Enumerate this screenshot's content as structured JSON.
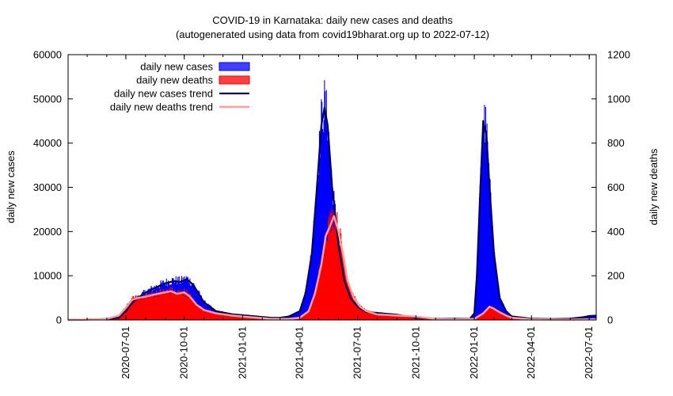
{
  "chart_data": {
    "type": "area",
    "title": "COVID-19 in Karnataka: daily new cases and deaths",
    "subtitle": "(autogenerated using data from covid19bharat.org up to 2022-07-12)",
    "ylabel": "daily new cases",
    "y2label": "daily new deaths",
    "ylim": [
      0,
      60000
    ],
    "y2lim": [
      0,
      1200
    ],
    "yticks": [
      "0",
      "10000",
      "20000",
      "30000",
      "40000",
      "50000",
      "60000"
    ],
    "y2ticks": [
      "0",
      "200",
      "400",
      "600",
      "800",
      "1000",
      "1200"
    ],
    "xlim": [
      "2020-04-01",
      "2022-07-12"
    ],
    "xticks": [
      "2020-07-01",
      "2020-10-01",
      "2021-01-01",
      "2021-04-01",
      "2021-07-01",
      "2021-10-01",
      "2022-01-01",
      "2022-04-01",
      "2022-07-01"
    ],
    "legend_position": "top-left",
    "legend": [
      {
        "label": "daily new cases",
        "color": "#0000ff",
        "kind": "box"
      },
      {
        "label": "daily new deaths",
        "color": "#ff0000",
        "kind": "box"
      },
      {
        "label": "daily new cases trend",
        "color": "#00005a",
        "kind": "line"
      },
      {
        "label": "daily new deaths trend",
        "color": "#ff9c9c",
        "kind": "line"
      }
    ],
    "series": [
      {
        "name": "daily new cases trend",
        "axis": "y",
        "dates": [
          "2020-04-01",
          "2020-05-01",
          "2020-06-01",
          "2020-06-20",
          "2020-07-01",
          "2020-07-15",
          "2020-08-01",
          "2020-08-15",
          "2020-09-01",
          "2020-09-15",
          "2020-09-25",
          "2020-10-05",
          "2020-10-15",
          "2020-11-01",
          "2020-11-20",
          "2020-12-15",
          "2021-01-15",
          "2021-02-15",
          "2021-03-01",
          "2021-03-15",
          "2021-04-01",
          "2021-04-10",
          "2021-04-20",
          "2021-04-28",
          "2021-05-05",
          "2021-05-10",
          "2021-05-15",
          "2021-05-22",
          "2021-06-01",
          "2021-06-10",
          "2021-06-20",
          "2021-07-01",
          "2021-07-15",
          "2021-08-01",
          "2021-09-01",
          "2021-10-01",
          "2021-11-01",
          "2021-12-01",
          "2021-12-25",
          "2022-01-01",
          "2022-01-05",
          "2022-01-10",
          "2022-01-15",
          "2022-01-20",
          "2022-01-25",
          "2022-02-01",
          "2022-02-10",
          "2022-02-20",
          "2022-03-01",
          "2022-04-01",
          "2022-05-01",
          "2022-06-01",
          "2022-06-20",
          "2022-07-01",
          "2022-07-12"
        ],
        "values": [
          0,
          100,
          200,
          500,
          2000,
          4500,
          6200,
          7200,
          8300,
          8800,
          8600,
          9200,
          8000,
          4000,
          2000,
          1300,
          900,
          500,
          500,
          800,
          2000,
          6000,
          15000,
          30000,
          44000,
          48000,
          44000,
          30000,
          17000,
          9000,
          5000,
          3000,
          1800,
          1600,
          1200,
          500,
          300,
          300,
          300,
          1500,
          10000,
          28000,
          45000,
          42000,
          30000,
          15000,
          5000,
          2000,
          800,
          300,
          200,
          300,
          600,
          900,
          1000
        ]
      },
      {
        "name": "daily new deaths trend",
        "axis": "y2",
        "dates": [
          "2020-04-01",
          "2020-05-01",
          "2020-06-01",
          "2020-06-20",
          "2020-07-01",
          "2020-07-10",
          "2020-07-20",
          "2020-08-01",
          "2020-08-15",
          "2020-09-01",
          "2020-09-10",
          "2020-09-20",
          "2020-10-01",
          "2020-10-10",
          "2020-10-20",
          "2020-11-01",
          "2020-11-20",
          "2020-12-15",
          "2021-01-15",
          "2021-02-15",
          "2021-03-15",
          "2021-04-01",
          "2021-04-15",
          "2021-04-25",
          "2021-05-05",
          "2021-05-12",
          "2021-05-18",
          "2021-05-25",
          "2021-06-01",
          "2021-06-08",
          "2021-06-15",
          "2021-06-25",
          "2021-07-05",
          "2021-07-15",
          "2021-08-01",
          "2021-09-01",
          "2021-10-01",
          "2021-11-01",
          "2021-12-01",
          "2022-01-01",
          "2022-01-15",
          "2022-01-25",
          "2022-02-01",
          "2022-02-10",
          "2022-02-20",
          "2022-03-01",
          "2022-04-01",
          "2022-05-01",
          "2022-06-01",
          "2022-07-12"
        ],
        "values": [
          0,
          2,
          5,
          20,
          55,
          90,
          100,
          105,
          115,
          125,
          130,
          118,
          125,
          105,
          70,
          45,
          30,
          20,
          12,
          5,
          5,
          10,
          40,
          120,
          250,
          380,
          420,
          470,
          400,
          300,
          180,
          100,
          60,
          40,
          25,
          20,
          15,
          5,
          3,
          5,
          30,
          60,
          50,
          35,
          20,
          10,
          3,
          2,
          2,
          3
        ]
      }
    ]
  }
}
